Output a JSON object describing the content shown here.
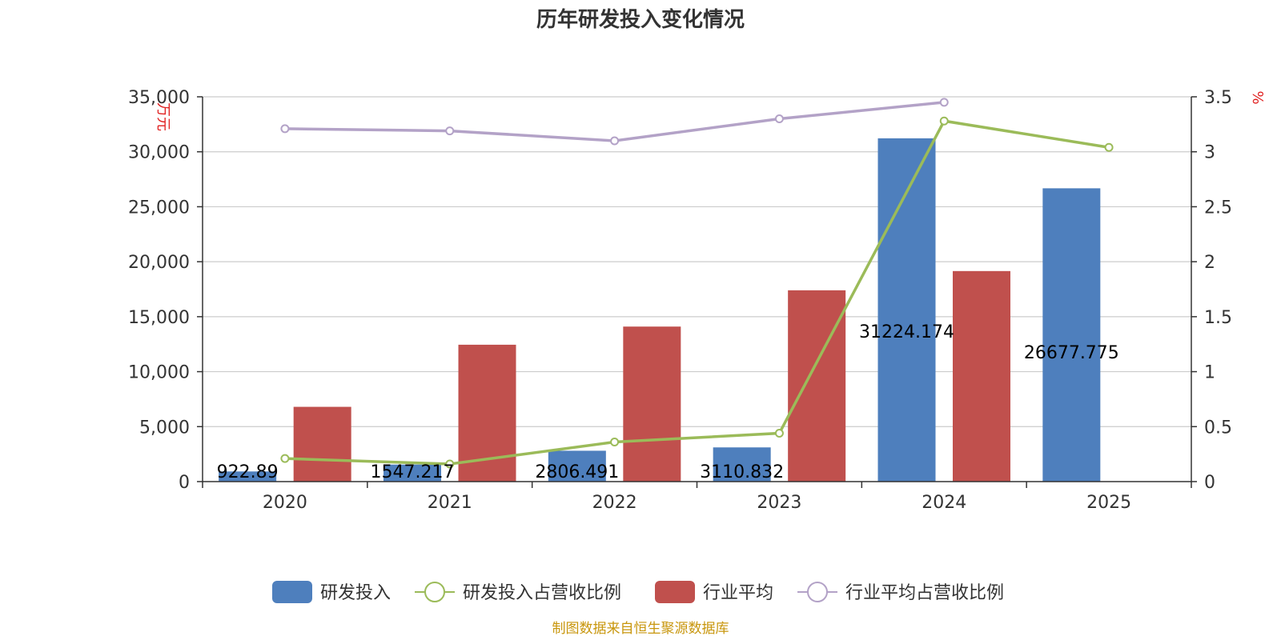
{
  "chart_data": {
    "type": "bar",
    "title": "历年研发投入变化情况",
    "categories": [
      "2020",
      "2021",
      "2022",
      "2023",
      "2024",
      "2025"
    ],
    "left_axis": {
      "unit": "万元",
      "min": 0,
      "max": 35000,
      "ticks": [
        0,
        5000,
        10000,
        15000,
        20000,
        25000,
        30000,
        35000
      ],
      "tick_labels": [
        "0",
        "5,000",
        "10,000",
        "15,000",
        "20,000",
        "25,000",
        "30,000",
        "35,000"
      ]
    },
    "right_axis": {
      "unit": "%",
      "min": 0,
      "max": 3.5,
      "ticks": [
        0,
        0.5,
        1,
        1.5,
        2,
        2.5,
        3,
        3.5
      ],
      "tick_labels": [
        "0",
        "0.5",
        "1",
        "1.5",
        "2",
        "2.5",
        "3",
        "3.5"
      ]
    },
    "grid": true,
    "legend_position": "bottom",
    "series": [
      {
        "name": "研发投入",
        "type": "bar",
        "axis": "left",
        "color": "#4e7fbd",
        "values": [
          922.89,
          1547.217,
          2806.491,
          3110.832,
          31224.174,
          26677.775
        ],
        "labels": [
          "922.89",
          "1547.217",
          "2806.491",
          "3110.832",
          "31224.174",
          "26677.775"
        ]
      },
      {
        "name": "研发投入占营收比例",
        "type": "line",
        "axis": "right",
        "color": "#9bbb59",
        "values": [
          0.21,
          0.16,
          0.36,
          0.44,
          3.28,
          3.04
        ]
      },
      {
        "name": "行业平均",
        "type": "bar",
        "axis": "left",
        "color": "#c0504d",
        "values": [
          6800,
          12450,
          14100,
          17400,
          19150,
          null
        ]
      },
      {
        "name": "行业平均占营收比例",
        "type": "line",
        "axis": "right",
        "color": "#b3a2c7",
        "values": [
          3.21,
          3.19,
          3.1,
          3.3,
          3.45,
          null
        ]
      }
    ],
    "source": "制图数据来自恒生聚源数据库"
  }
}
